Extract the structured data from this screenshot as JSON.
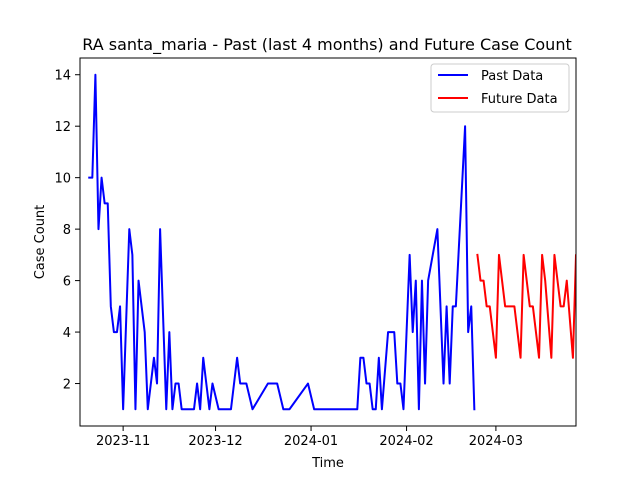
{
  "chart_data": {
    "type": "line",
    "title": "RA santa_maria - Past (last 4 months) and Future Case Count",
    "xlabel": "Time",
    "ylabel": "Case Count",
    "x_start_date": "2023-10-21",
    "xlim": [
      "2023-10-18",
      "2024-03-27"
    ],
    "ylim": [
      0.35,
      14.65
    ],
    "x_ticks": [
      {
        "date": "2023-11-01",
        "label": "2023-11"
      },
      {
        "date": "2023-12-01",
        "label": "2023-12"
      },
      {
        "date": "2024-01-01",
        "label": "2024-01"
      },
      {
        "date": "2024-02-01",
        "label": "2024-02"
      },
      {
        "date": "2024-03-01",
        "label": "2024-03"
      }
    ],
    "y_ticks": [
      2,
      4,
      6,
      8,
      10,
      12,
      14
    ],
    "grid": false,
    "legend_position": "top-right",
    "series": [
      {
        "name": "Past Data",
        "color": "#0000ff",
        "points": [
          [
            "2023-10-21",
            10
          ],
          [
            "2023-10-22",
            10
          ],
          [
            "2023-10-23",
            14
          ],
          [
            "2023-10-24",
            8
          ],
          [
            "2023-10-25",
            10
          ],
          [
            "2023-10-26",
            9
          ],
          [
            "2023-10-27",
            9
          ],
          [
            "2023-10-28",
            5
          ],
          [
            "2023-10-29",
            4
          ],
          [
            "2023-10-30",
            4
          ],
          [
            "2023-10-31",
            5
          ],
          [
            "2023-11-01",
            1
          ],
          [
            "2023-11-03",
            8
          ],
          [
            "2023-11-04",
            7
          ],
          [
            "2023-11-05",
            1
          ],
          [
            "2023-11-06",
            6
          ],
          [
            "2023-11-08",
            4
          ],
          [
            "2023-11-09",
            1
          ],
          [
            "2023-11-11",
            3
          ],
          [
            "2023-11-12",
            2
          ],
          [
            "2023-11-13",
            8
          ],
          [
            "2023-11-15",
            1
          ],
          [
            "2023-11-16",
            4
          ],
          [
            "2023-11-17",
            1
          ],
          [
            "2023-11-18",
            2
          ],
          [
            "2023-11-19",
            2
          ],
          [
            "2023-11-20",
            1
          ],
          [
            "2023-11-24",
            1
          ],
          [
            "2023-11-25",
            2
          ],
          [
            "2023-11-26",
            1
          ],
          [
            "2023-11-27",
            3
          ],
          [
            "2023-11-29",
            1
          ],
          [
            "2023-11-30",
            2
          ],
          [
            "2023-12-02",
            1
          ],
          [
            "2023-12-06",
            1
          ],
          [
            "2023-12-08",
            3
          ],
          [
            "2023-12-09",
            2
          ],
          [
            "2023-12-11",
            2
          ],
          [
            "2023-12-13",
            1
          ],
          [
            "2023-12-18",
            2
          ],
          [
            "2023-12-21",
            2
          ],
          [
            "2023-12-23",
            1
          ],
          [
            "2023-12-25",
            1
          ],
          [
            "2023-12-31",
            2
          ],
          [
            "2024-01-02",
            1
          ],
          [
            "2024-01-16",
            1
          ],
          [
            "2024-01-17",
            3
          ],
          [
            "2024-01-18",
            3
          ],
          [
            "2024-01-19",
            2
          ],
          [
            "2024-01-20",
            2
          ],
          [
            "2024-01-21",
            1
          ],
          [
            "2024-01-22",
            1
          ],
          [
            "2024-01-23",
            3
          ],
          [
            "2024-01-24",
            1
          ],
          [
            "2024-01-26",
            4
          ],
          [
            "2024-01-28",
            4
          ],
          [
            "2024-01-29",
            2
          ],
          [
            "2024-01-30",
            2
          ],
          [
            "2024-01-31",
            1
          ],
          [
            "2024-02-02",
            7
          ],
          [
            "2024-02-03",
            4
          ],
          [
            "2024-02-04",
            6
          ],
          [
            "2024-02-05",
            1
          ],
          [
            "2024-02-06",
            6
          ],
          [
            "2024-02-07",
            2
          ],
          [
            "2024-02-08",
            6
          ],
          [
            "2024-02-11",
            8
          ],
          [
            "2024-02-13",
            2
          ],
          [
            "2024-02-14",
            5
          ],
          [
            "2024-02-15",
            2
          ],
          [
            "2024-02-16",
            5
          ],
          [
            "2024-02-17",
            5
          ],
          [
            "2024-02-20",
            12
          ],
          [
            "2024-02-21",
            4
          ],
          [
            "2024-02-22",
            5
          ],
          [
            "2024-02-23",
            1
          ]
        ]
      },
      {
        "name": "Future Data",
        "color": "#ff0000",
        "points": [
          [
            "2024-02-24",
            7
          ],
          [
            "2024-02-25",
            6
          ],
          [
            "2024-02-26",
            6
          ],
          [
            "2024-02-27",
            5
          ],
          [
            "2024-02-28",
            5
          ],
          [
            "2024-02-29",
            4
          ],
          [
            "2024-03-01",
            3
          ],
          [
            "2024-03-02",
            7
          ],
          [
            "2024-03-03",
            6
          ],
          [
            "2024-03-04",
            5
          ],
          [
            "2024-03-05",
            5
          ],
          [
            "2024-03-07",
            5
          ],
          [
            "2024-03-09",
            3
          ],
          [
            "2024-03-10",
            7
          ],
          [
            "2024-03-11",
            6
          ],
          [
            "2024-03-12",
            5
          ],
          [
            "2024-03-13",
            5
          ],
          [
            "2024-03-15",
            3
          ],
          [
            "2024-03-16",
            7
          ],
          [
            "2024-03-17",
            6
          ],
          [
            "2024-03-19",
            3
          ],
          [
            "2024-03-20",
            7
          ],
          [
            "2024-03-22",
            5
          ],
          [
            "2024-03-23",
            5
          ],
          [
            "2024-03-24",
            6
          ],
          [
            "2024-03-26",
            3
          ],
          [
            "2024-03-27",
            7
          ],
          [
            "2024-03-28",
            6
          ]
        ]
      }
    ]
  }
}
